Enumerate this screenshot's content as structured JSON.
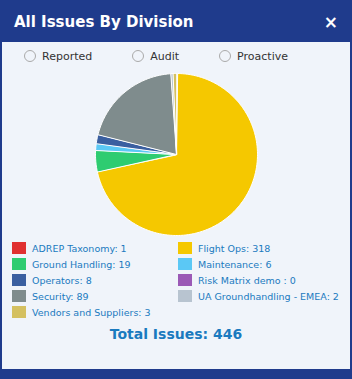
{
  "chart_data": {
    "type": "pie",
    "title": "All Issues By Division",
    "categories": [
      "ADREP Taxonomy: 1",
      "Flight Ops: 318",
      "Ground Handling: 19",
      "Maintenance: 6",
      "Operators: 8",
      "Risk Matrix demo : 0",
      "Security: 89",
      "UA Groundhandling - EMEA: 2",
      "Vendors and Suppliers: 3"
    ],
    "values": [
      1,
      318,
      19,
      6,
      8,
      0,
      89,
      2,
      3
    ],
    "colors": [
      "#e03030",
      "#f5c800",
      "#2ecc71",
      "#5bc8f5",
      "#3a5fa0",
      "#9b59b6",
      "#7f8c8d",
      "#b8c4d0",
      "#d4c060"
    ],
    "legend": "bottom",
    "annotations": [
      "×",
      "Reported",
      "Audit",
      "Proactive",
      "Total Issues: 446"
    ]
  }
}
